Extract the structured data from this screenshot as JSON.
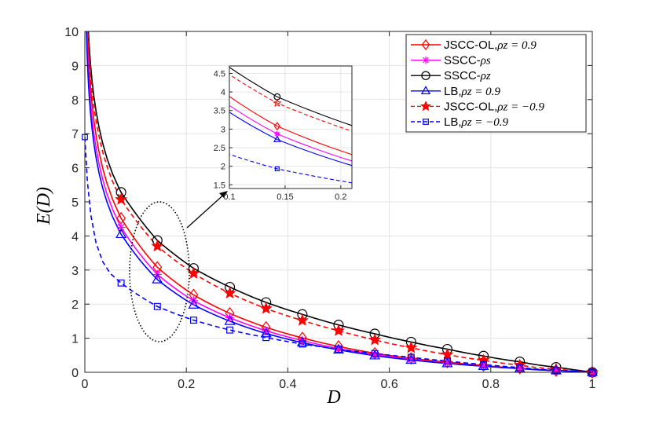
{
  "chart_data": {
    "type": "line",
    "xlabel": "D",
    "ylabel": "E(D)",
    "xlim": [
      0,
      1
    ],
    "ylim": [
      0,
      10
    ],
    "xticks": [
      "0",
      "0.2",
      "0.4",
      "0.6",
      "0.8",
      "1"
    ],
    "yticks": [
      "0",
      "1",
      "2",
      "3",
      "4",
      "5",
      "6",
      "7",
      "8",
      "9",
      "10"
    ],
    "grid": true,
    "legend_position": "top-right",
    "marker_x": [
      0.0714,
      0.1429,
      0.2143,
      0.2857,
      0.3571,
      0.4286,
      0.5,
      0.5714,
      0.6429,
      0.7143,
      0.7857,
      0.8571,
      0.9286,
      1.0
    ],
    "series": [
      {
        "name": "JSCC-OL,",
        "math": "ρz = 0.9",
        "color": "#ff0000",
        "dash": "solid",
        "marker": "diamond",
        "filled": false,
        "values": [
          4.52,
          3.08,
          2.27,
          1.73,
          1.32,
          1.01,
          0.76,
          0.56,
          0.41,
          0.3,
          0.2,
          0.12,
          0.05,
          0.0
        ]
      },
      {
        "name": "SSCC-",
        "math": "ρs",
        "color": "#ff00ff",
        "dash": "solid",
        "marker": "asterisk",
        "filled": false,
        "values": [
          4.25,
          2.87,
          2.1,
          1.6,
          1.22,
          0.93,
          0.7,
          0.52,
          0.38,
          0.27,
          0.18,
          0.11,
          0.05,
          0.0
        ]
      },
      {
        "name": "SSCC-",
        "math": "ρz",
        "color": "#000000",
        "dash": "solid",
        "marker": "circle",
        "filled": false,
        "values": [
          5.28,
          3.87,
          3.05,
          2.5,
          2.05,
          1.7,
          1.39,
          1.13,
          0.89,
          0.68,
          0.48,
          0.31,
          0.15,
          0.0
        ]
      },
      {
        "name": "LB,",
        "math": "ρz = 0.9",
        "color": "#0000ff",
        "dash": "solid",
        "marker": "triangle",
        "filled": false,
        "values": [
          4.05,
          2.72,
          1.98,
          1.5,
          1.14,
          0.87,
          0.66,
          0.49,
          0.36,
          0.26,
          0.18,
          0.11,
          0.05,
          0.0
        ]
      },
      {
        "name": "JSCC-OL,",
        "math": "ρz = −0.9",
        "color": "#ff0000",
        "dash": "dashed",
        "marker": "star",
        "filled": true,
        "values": [
          5.07,
          3.7,
          2.9,
          2.32,
          1.87,
          1.52,
          1.22,
          0.95,
          0.72,
          0.52,
          0.35,
          0.21,
          0.09,
          0.0
        ]
      },
      {
        "name": "LB,",
        "math": "ρz = −0.9",
        "color": "#0000ff",
        "dash": "dashed",
        "marker": "square",
        "filled": false,
        "start": {
          "x": 0.0,
          "y": 6.9
        },
        "values": [
          2.62,
          1.93,
          1.53,
          1.24,
          1.02,
          0.83,
          0.68,
          0.55,
          0.44,
          0.33,
          0.23,
          0.14,
          0.06,
          0.0
        ]
      }
    ],
    "inset": {
      "xlim": [
        0.1,
        0.21
      ],
      "ylim": [
        1.4,
        4.7
      ],
      "xticks": [
        "0.1",
        "0.15",
        "0.2"
      ],
      "yticks": [
        "1.5",
        "2",
        "2.5",
        "3",
        "3.5",
        "4",
        "4.5"
      ],
      "marker_x": 0.1429,
      "note": "zoom of region near D = 0.14"
    }
  }
}
